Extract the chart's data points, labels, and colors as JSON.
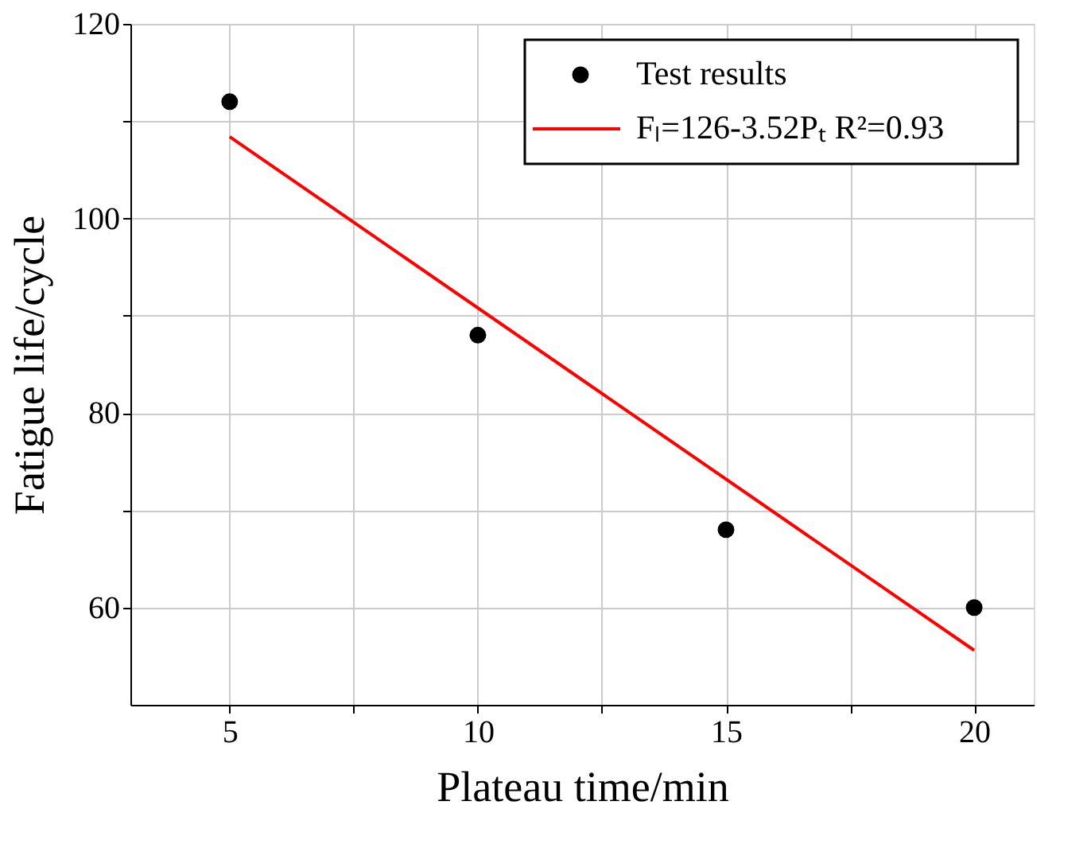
{
  "chart_data": {
    "type": "scatter",
    "xlabel": "Plateau time/min",
    "ylabel": "Fatigue life/cycle",
    "x": [
      5,
      10,
      15,
      20
    ],
    "series": [
      {
        "name": "Test results",
        "color": "#000000",
        "marker": "circle",
        "values": [
          112,
          88,
          68,
          60
        ]
      },
      {
        "name": "Fₗ=126-3.52Pₜ  R²=0.93",
        "type": "line",
        "color": "#ff0000",
        "x": [
          5,
          20
        ],
        "values": [
          108.4,
          55.6
        ]
      }
    ],
    "xlim": [
      3,
      21.2
    ],
    "ylim": [
      50,
      120
    ],
    "xticks": [
      5,
      {
        "value": 7.5,
        "label": null
      },
      10,
      {
        "value": 12.5,
        "label": null
      },
      15,
      {
        "value": 17.5,
        "label": null
      },
      20
    ],
    "yticks": [
      60,
      {
        "value": 70,
        "label": null
      },
      80,
      {
        "value": 90,
        "label": null
      },
      100,
      {
        "value": 110,
        "label": null
      },
      120
    ],
    "grid": true,
    "legend": "top right",
    "line_style": "solid"
  }
}
